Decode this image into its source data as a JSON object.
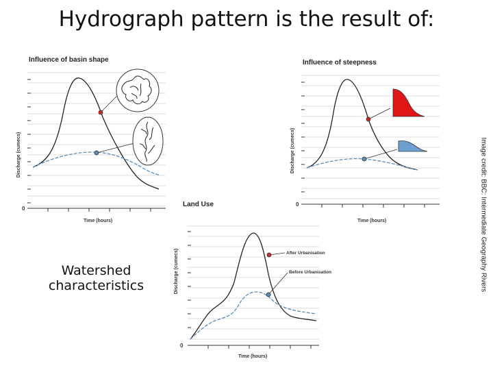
{
  "title": "Hydrograph pattern is the result of:",
  "subtitle": "Watershed characteristics",
  "credit": "Image credit: BBC: Intermediate Geography Rivers",
  "panels": {
    "basin_shape": {
      "title": "Influence of basin shape",
      "ylabel": "Discharge (cumecs)",
      "xlabel": "Time (hours)",
      "origin": "0"
    },
    "steepness": {
      "title": "Influence of steepness",
      "ylabel": "Discharge (cumecs)",
      "xlabel": "Time (hours)",
      "origin": "0"
    },
    "land_use": {
      "title": "Land Use",
      "ylabel": "Discharge (cumecs)",
      "xlabel": "Time (hours)",
      "origin": "0",
      "after_label": "After Urbanisation",
      "before_label": "Before Urbanisation"
    }
  },
  "colors": {
    "peak_curve": "#222222",
    "base_curve": "#5b8db8",
    "red_marker": "#cc2a2a",
    "blue_fill": "#6f9fd0",
    "red_fill": "#e01515",
    "grid": "#d0d0d0"
  },
  "icons": [
    "round-basin-icon",
    "elongated-basin-icon",
    "steep-slope-icon",
    "gentle-slope-icon"
  ]
}
